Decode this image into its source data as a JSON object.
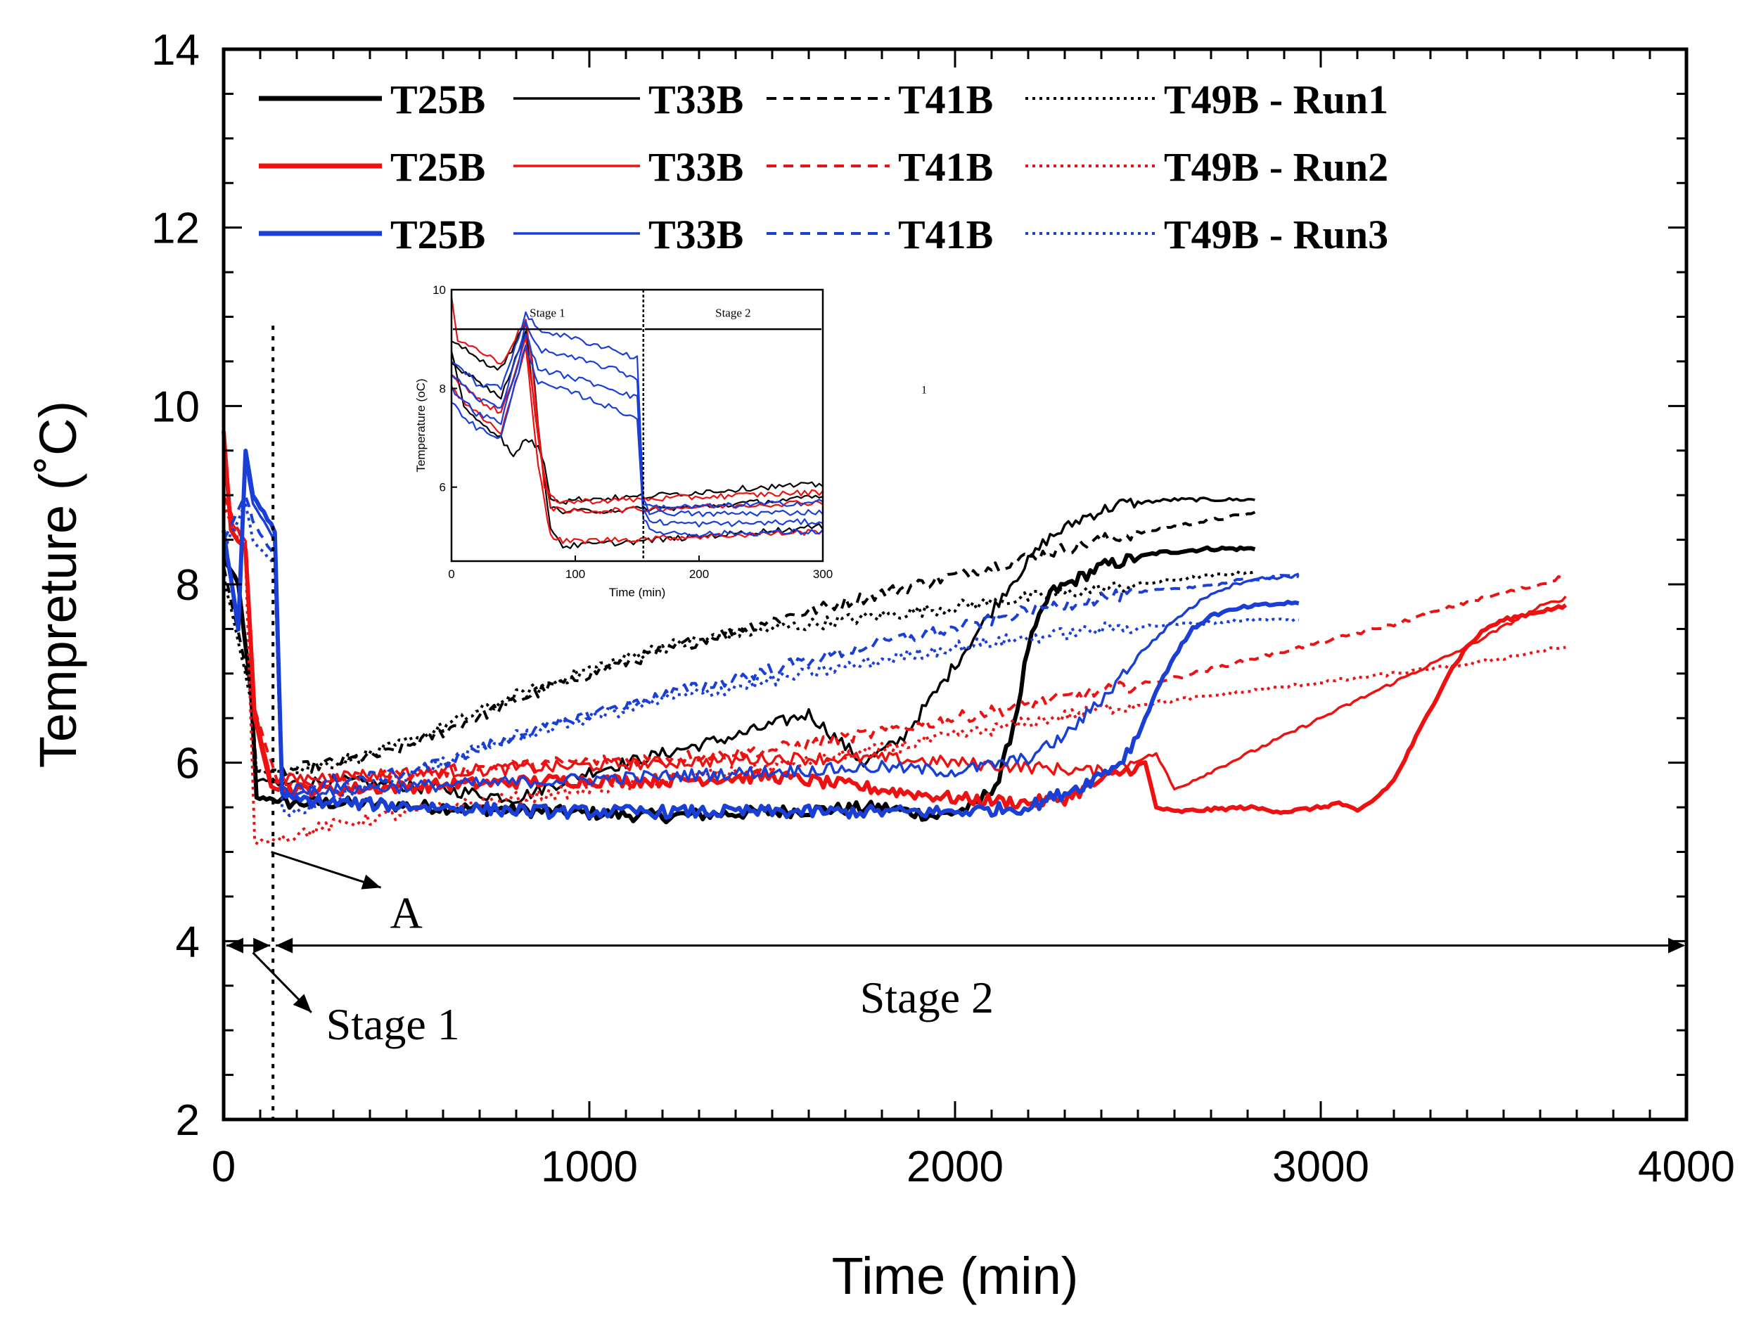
{
  "chart_data": {
    "type": "line",
    "title": "",
    "xlabel": "Time (min)",
    "ylabel": "Tempreture (˚C)",
    "xlim": [
      0,
      4000
    ],
    "ylim": [
      2,
      14
    ],
    "xticks": [
      "0",
      "1000",
      "2000",
      "3000",
      "4000"
    ],
    "yticks": [
      "2",
      "4",
      "6",
      "8",
      "10",
      "12",
      "14"
    ],
    "legend": {
      "rows": [
        {
          "run": "Run1",
          "color": "#000000",
          "labels": [
            "T25B",
            "T33B",
            "T41B",
            "T49B - Run1"
          ]
        },
        {
          "run": "Run2",
          "color": "#ee1111",
          "labels": [
            "T25B",
            "T33B",
            "T41B",
            "T49B - Run2"
          ]
        },
        {
          "run": "Run3",
          "color": "#1a3fd6",
          "labels": [
            "T25B",
            "T33B",
            "T41B",
            "T49B - Run3"
          ]
        }
      ]
    },
    "annotations": {
      "point_a": "A",
      "stage1": "Stage 1",
      "stage2": "Stage 2",
      "stage_boundary_x": 135
    },
    "series": [
      {
        "name": "T25B - Run1",
        "color": "#000000",
        "style": "thick",
        "x": [
          0,
          40,
          75,
          90,
          135,
          150,
          300,
          600,
          900,
          1200,
          1500,
          1800,
          1950,
          2050,
          2120,
          2170,
          2200,
          2260,
          2400,
          2550,
          2700,
          2820
        ],
        "y": [
          8.3,
          8.0,
          6.8,
          5.6,
          5.6,
          5.55,
          5.55,
          5.5,
          5.45,
          5.4,
          5.45,
          5.5,
          5.4,
          5.5,
          5.8,
          6.6,
          7.3,
          7.9,
          8.2,
          8.35,
          8.4,
          8.4
        ]
      },
      {
        "name": "T33B - Run1",
        "color": "#000000",
        "style": "solid",
        "x": [
          0,
          40,
          75,
          90,
          135,
          150,
          300,
          600,
          800,
          1000,
          1200,
          1400,
          1600,
          1750,
          1850,
          1950,
          2050,
          2150,
          2250,
          2350,
          2450,
          2600,
          2820
        ],
        "y": [
          8.3,
          8.0,
          6.7,
          5.8,
          5.8,
          5.75,
          5.8,
          5.7,
          5.6,
          5.9,
          6.1,
          6.3,
          6.55,
          6.0,
          6.25,
          6.8,
          7.4,
          8.0,
          8.5,
          8.75,
          8.9,
          8.95,
          8.95
        ]
      },
      {
        "name": "T41B - Run1",
        "color": "#000000",
        "style": "dashed",
        "x": [
          0,
          75,
          90,
          150,
          300,
          450,
          600,
          800,
          1000,
          1200,
          1400,
          1600,
          1800,
          2000,
          2200,
          2400,
          2600,
          2820
        ],
        "y": [
          8.2,
          6.8,
          5.9,
          5.9,
          6.0,
          6.1,
          6.35,
          6.7,
          7.0,
          7.25,
          7.5,
          7.7,
          7.9,
          8.1,
          8.3,
          8.5,
          8.65,
          8.8
        ]
      },
      {
        "name": "T49B - Run1",
        "color": "#000000",
        "style": "dotted",
        "x": [
          0,
          75,
          90,
          150,
          300,
          450,
          600,
          800,
          1000,
          1200,
          1400,
          1600,
          1800,
          2000,
          2200,
          2400,
          2600,
          2820
        ],
        "y": [
          8.1,
          6.7,
          5.9,
          5.9,
          6.0,
          6.15,
          6.4,
          6.75,
          7.05,
          7.3,
          7.45,
          7.55,
          7.65,
          7.75,
          7.85,
          7.95,
          8.05,
          8.15
        ]
      },
      {
        "name": "T25B - Run2",
        "color": "#ee1111",
        "style": "thick",
        "x": [
          0,
          20,
          60,
          85,
          130,
          150,
          300,
          600,
          900,
          1200,
          1500,
          1800,
          2000,
          2200,
          2300,
          2400,
          2520,
          2550,
          2600,
          2800,
          2900,
          3000,
          3050,
          3100,
          3150,
          3200,
          3250,
          3300,
          3350,
          3400,
          3450,
          3500,
          3550,
          3600,
          3670
        ],
        "y": [
          9.7,
          8.6,
          8.4,
          6.5,
          5.75,
          5.7,
          5.7,
          5.75,
          5.8,
          5.8,
          5.85,
          5.7,
          5.6,
          5.55,
          5.6,
          5.8,
          6.0,
          5.5,
          5.45,
          5.5,
          5.45,
          5.5,
          5.55,
          5.45,
          5.6,
          5.8,
          6.2,
          6.6,
          7.0,
          7.3,
          7.5,
          7.6,
          7.65,
          7.7,
          7.75
        ]
      },
      {
        "name": "T33B - Run2",
        "color": "#ee1111",
        "style": "solid",
        "x": [
          0,
          20,
          60,
          85,
          130,
          150,
          300,
          600,
          900,
          1200,
          1500,
          1800,
          2000,
          2200,
          2400,
          2550,
          2600,
          2800,
          3000,
          3200,
          3400,
          3600,
          3670
        ],
        "y": [
          9.8,
          8.7,
          8.5,
          6.6,
          5.8,
          5.8,
          5.85,
          5.9,
          5.95,
          6.0,
          6.05,
          6.05,
          6.0,
          5.95,
          5.9,
          6.1,
          5.7,
          6.1,
          6.5,
          6.9,
          7.3,
          7.75,
          7.85
        ]
      },
      {
        "name": "T41B - Run2",
        "color": "#ee1111",
        "style": "dashed",
        "x": [
          0,
          60,
          85,
          150,
          300,
          600,
          900,
          1200,
          1500,
          1800,
          2000,
          2200,
          2400,
          2600,
          2800,
          3000,
          3200,
          3400,
          3600,
          3670
        ],
        "y": [
          9.0,
          8.4,
          6.6,
          5.75,
          5.8,
          5.9,
          6.0,
          6.05,
          6.15,
          6.35,
          6.5,
          6.65,
          6.8,
          6.95,
          7.15,
          7.35,
          7.55,
          7.8,
          8.0,
          8.1
        ]
      },
      {
        "name": "T49B - Run2",
        "color": "#ee1111",
        "style": "dotted",
        "x": [
          0,
          60,
          85,
          150,
          300,
          600,
          900,
          1200,
          1500,
          1800,
          2000,
          2200,
          2400,
          2600,
          2800,
          3000,
          3200,
          3400,
          3600,
          3670
        ],
        "y": [
          8.9,
          8.3,
          5.1,
          5.15,
          5.3,
          5.5,
          5.65,
          5.8,
          5.95,
          6.15,
          6.3,
          6.45,
          6.6,
          6.7,
          6.8,
          6.9,
          7.0,
          7.1,
          7.25,
          7.3
        ]
      },
      {
        "name": "T25B - Run3",
        "color": "#1a3fd6",
        "style": "thick",
        "x": [
          0,
          40,
          60,
          80,
          110,
          140,
          160,
          300,
          600,
          900,
          1200,
          1500,
          1800,
          2000,
          2200,
          2350,
          2450,
          2500,
          2550,
          2600,
          2650,
          2700,
          2800,
          2940
        ],
        "y": [
          8.6,
          7.5,
          9.5,
          9.0,
          8.8,
          8.6,
          5.6,
          5.55,
          5.5,
          5.45,
          5.45,
          5.45,
          5.45,
          5.45,
          5.5,
          5.75,
          6.0,
          6.3,
          6.8,
          7.2,
          7.5,
          7.65,
          7.75,
          7.8
        ]
      },
      {
        "name": "T33B - Run3",
        "color": "#1a3fd6",
        "style": "solid",
        "x": [
          0,
          40,
          60,
          80,
          110,
          140,
          160,
          300,
          600,
          900,
          1200,
          1500,
          1800,
          2000,
          2200,
          2300,
          2400,
          2500,
          2600,
          2700,
          2800,
          2940
        ],
        "y": [
          8.6,
          7.6,
          9.4,
          8.9,
          8.7,
          8.5,
          5.7,
          5.7,
          5.75,
          5.8,
          5.85,
          5.9,
          5.95,
          5.9,
          6.05,
          6.3,
          6.7,
          7.2,
          7.6,
          7.9,
          8.05,
          8.1
        ]
      },
      {
        "name": "T41B - Run3",
        "color": "#1a3fd6",
        "style": "dashed",
        "x": [
          0,
          60,
          80,
          140,
          160,
          300,
          450,
          600,
          800,
          1000,
          1200,
          1400,
          1600,
          1800,
          2000,
          2200,
          2400,
          2600,
          2800,
          2940
        ],
        "y": [
          8.5,
          9.0,
          8.7,
          8.3,
          5.6,
          5.8,
          5.85,
          6.0,
          6.3,
          6.55,
          6.75,
          6.95,
          7.15,
          7.35,
          7.5,
          7.7,
          7.85,
          7.95,
          8.05,
          8.1
        ]
      },
      {
        "name": "T49B - Run3",
        "color": "#1a3fd6",
        "style": "dotted",
        "x": [
          0,
          60,
          80,
          140,
          160,
          300,
          450,
          600,
          800,
          1000,
          1200,
          1400,
          1600,
          1800,
          2000,
          2200,
          2400,
          2600,
          2800,
          2940
        ],
        "y": [
          8.4,
          8.9,
          8.5,
          8.2,
          5.4,
          5.6,
          5.8,
          6.0,
          6.3,
          6.5,
          6.7,
          6.85,
          7.0,
          7.15,
          7.3,
          7.4,
          7.5,
          7.55,
          7.6,
          7.6
        ]
      }
    ],
    "inset": {
      "xlabel": "Time (min)",
      "ylabel": "Temperature (oC)",
      "xlim": [
        0,
        300
      ],
      "ylim": [
        4.5,
        10
      ],
      "xticks": [
        "0",
        "100",
        "200",
        "300"
      ],
      "yticks": [
        "6",
        "8",
        "10"
      ],
      "stage1": "Stage 1",
      "stage2": "Stage 2",
      "stage_boundary_x": 155,
      "side_mark": "1",
      "series": [
        {
          "color": "#000000",
          "x": [
            0,
            10,
            20,
            40,
            50,
            60,
            70,
            75,
            80,
            90,
            100,
            150,
            200,
            250,
            300
          ],
          "y": [
            8.8,
            7.6,
            7.4,
            7.0,
            6.6,
            7.0,
            6.8,
            6.5,
            5.8,
            5.7,
            5.75,
            5.8,
            5.9,
            6.0,
            6.05
          ]
        },
        {
          "color": "#000000",
          "x": [
            0,
            20,
            40,
            60,
            65,
            70,
            75,
            80,
            90,
            150,
            200,
            300
          ],
          "y": [
            9.0,
            8.6,
            8.4,
            9.3,
            8.6,
            7.3,
            6.2,
            5.6,
            5.5,
            5.55,
            5.6,
            5.8
          ]
        },
        {
          "color": "#000000",
          "x": [
            0,
            20,
            40,
            60,
            70,
            80,
            90,
            150,
            300
          ],
          "y": [
            8.5,
            8.2,
            7.8,
            9.2,
            7.0,
            5.2,
            4.8,
            4.9,
            5.2
          ]
        },
        {
          "color": "#ee1111",
          "x": [
            0,
            5,
            20,
            40,
            60,
            65,
            70,
            75,
            80,
            90,
            150,
            200,
            300
          ],
          "y": [
            9.9,
            9.0,
            8.8,
            8.5,
            9.4,
            8.5,
            7.2,
            6.0,
            5.8,
            5.7,
            5.75,
            5.8,
            5.9
          ]
        },
        {
          "color": "#ee1111",
          "x": [
            0,
            20,
            40,
            60,
            70,
            80,
            90,
            150,
            300
          ],
          "y": [
            8.3,
            7.8,
            7.5,
            9.0,
            7.0,
            5.6,
            5.5,
            5.55,
            5.7
          ]
        },
        {
          "color": "#ee1111",
          "x": [
            0,
            20,
            40,
            60,
            70,
            80,
            90,
            150,
            300
          ],
          "y": [
            8.0,
            7.5,
            7.1,
            8.8,
            6.5,
            5.0,
            4.9,
            4.95,
            5.1
          ]
        },
        {
          "color": "#1a3fd6",
          "x": [
            0,
            20,
            40,
            60,
            70,
            100,
            130,
            150,
            155,
            160,
            200,
            300
          ],
          "y": [
            8.6,
            8.1,
            8.0,
            9.5,
            9.2,
            9.0,
            8.8,
            8.6,
            5.8,
            5.6,
            5.6,
            5.7
          ]
        },
        {
          "color": "#1a3fd6",
          "x": [
            0,
            20,
            40,
            60,
            70,
            100,
            130,
            150,
            155,
            160,
            200,
            300
          ],
          "y": [
            8.3,
            7.8,
            7.6,
            9.3,
            8.8,
            8.6,
            8.4,
            8.2,
            5.7,
            5.5,
            5.45,
            5.5
          ]
        },
        {
          "color": "#1a3fd6",
          "x": [
            0,
            20,
            40,
            60,
            70,
            100,
            130,
            150,
            155,
            160,
            200,
            300
          ],
          "y": [
            8.0,
            7.5,
            7.3,
            9.1,
            8.4,
            8.2,
            8.0,
            7.8,
            5.6,
            5.3,
            5.25,
            5.3
          ]
        },
        {
          "color": "#1a3fd6",
          "x": [
            0,
            20,
            40,
            60,
            70,
            100,
            130,
            150,
            155,
            160,
            200,
            300
          ],
          "y": [
            7.7,
            7.2,
            7.0,
            8.9,
            8.1,
            7.9,
            7.6,
            7.4,
            5.4,
            5.1,
            5.05,
            5.1
          ]
        }
      ]
    }
  }
}
